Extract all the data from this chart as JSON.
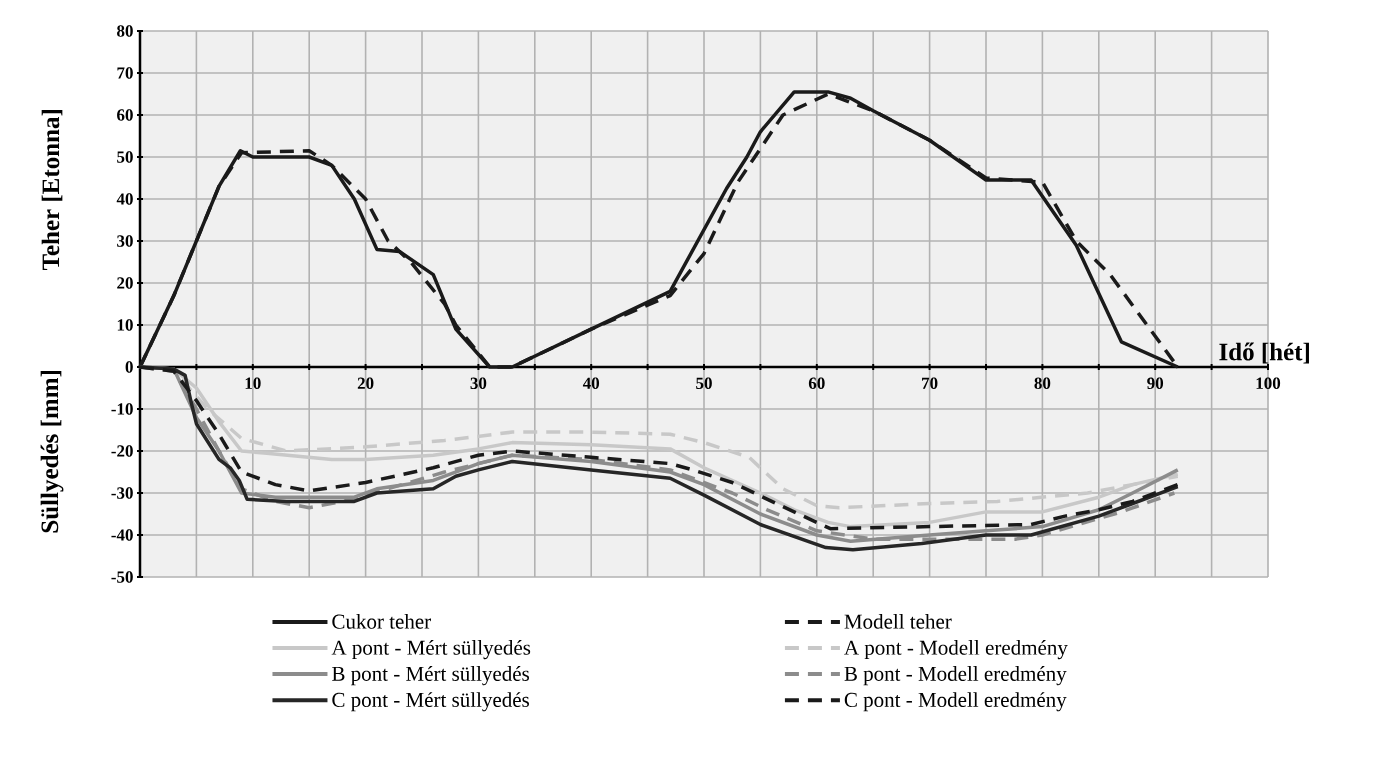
{
  "chart_data": {
    "type": "line",
    "xlabel": "Idő [hét]",
    "ylabel": "Teher [Etonna]",
    "annotations": [
      "Süllyedés [mm]"
    ],
    "xlim": [
      0,
      100
    ],
    "ylim": [
      -50,
      80
    ],
    "xticks": [
      {
        "value": 5,
        "label": null
      },
      10,
      {
        "value": 15,
        "label": null
      },
      20,
      {
        "value": 25,
        "label": null
      },
      30,
      {
        "value": 35,
        "label": null
      },
      40,
      {
        "value": 45,
        "label": null
      },
      50,
      {
        "value": 55,
        "label": null
      },
      60,
      {
        "value": 65,
        "label": null
      },
      70,
      {
        "value": 75,
        "label": null
      },
      80,
      {
        "value": 85,
        "label": null
      },
      90,
      {
        "value": 95,
        "label": null
      },
      100
    ],
    "yticks": [
      -50,
      -40,
      -30,
      -20,
      -10,
      0,
      10,
      20,
      30,
      40,
      50,
      60,
      70,
      80
    ],
    "grid": true,
    "legend": "bottom",
    "series": [
      {
        "name": "Cukor teher",
        "color": "#1a1a1a",
        "line_style": "solid",
        "x": [
          0,
          3,
          7,
          8.9,
          10,
          15,
          17,
          19,
          21,
          23,
          26,
          28,
          31,
          33,
          40,
          47,
          52,
          53.8,
          55,
          58,
          61,
          63,
          65,
          70,
          75,
          79,
          83,
          87,
          92
        ],
        "values": [
          0,
          17,
          43,
          51.5,
          50,
          50,
          48,
          40,
          28,
          27.5,
          22,
          9,
          0,
          0,
          9,
          18,
          42.5,
          50,
          56,
          65.5,
          65.5,
          64,
          61,
          54,
          44.5,
          44.5,
          29,
          6,
          0
        ]
      },
      {
        "name": "Modell teher",
        "color": "#1a1a1a",
        "line_style": "dashed",
        "x": [
          0,
          3,
          7,
          9,
          15,
          17,
          20,
          22,
          24,
          27,
          28,
          31,
          33,
          40,
          47,
          50,
          53,
          55,
          57,
          61,
          65,
          70,
          75,
          80,
          83,
          86,
          92
        ],
        "values": [
          0,
          17,
          43,
          51,
          51.5,
          48,
          40,
          30,
          25,
          15,
          10,
          0,
          0,
          9,
          17,
          27,
          44,
          52,
          60,
          65,
          61,
          54,
          45,
          44,
          30,
          22,
          0
        ]
      },
      {
        "name": "A pont - Mért süllyedés",
        "color": "#c8c8c8",
        "line_style": "solid",
        "x": [
          0,
          3,
          5,
          7,
          9,
          11,
          17,
          20,
          26,
          30,
          33,
          40,
          47,
          50,
          55,
          58,
          61,
          63,
          70,
          75,
          80,
          85,
          88,
          92
        ],
        "values": [
          0,
          -0.5,
          -5,
          -13,
          -20,
          -20.5,
          -22,
          -22,
          -21,
          -19.5,
          -18,
          -18.5,
          -19.5,
          -24,
          -30,
          -34,
          -37,
          -38,
          -37,
          -34.5,
          -34.5,
          -31,
          -28,
          -25.5
        ]
      },
      {
        "name": "A pont - Modell eredmény",
        "color": "#c8c8c8",
        "line_style": "dashed",
        "x": [
          0,
          3,
          6,
          9,
          13,
          20,
          27,
          33,
          40,
          47,
          50,
          54,
          57,
          60,
          62,
          70,
          76,
          84,
          88,
          92
        ],
        "values": [
          0,
          -1,
          -10,
          -17,
          -20,
          -19,
          -17.5,
          -15.5,
          -15.5,
          -16,
          -18,
          -21.5,
          -29,
          -33,
          -33.5,
          -32.5,
          -32,
          -30,
          -28,
          -26
        ]
      },
      {
        "name": "B pont - Mért süllyedés",
        "color": "#8c8c8c",
        "line_style": "solid",
        "x": [
          0,
          3,
          5,
          7,
          9,
          12,
          19,
          21,
          26,
          30,
          33,
          40,
          47,
          50,
          55,
          60,
          63,
          70,
          75,
          80,
          85,
          88,
          92
        ],
        "values": [
          0,
          -0.5,
          -12,
          -20,
          -30,
          -31,
          -31,
          -29,
          -27,
          -23,
          -21,
          -22.5,
          -25,
          -28,
          -35,
          -40,
          -41.5,
          -40,
          -39,
          -38,
          -34,
          -30,
          -24.5
        ]
      },
      {
        "name": "B pont - Modell eredmény",
        "color": "#8c8c8c",
        "line_style": "dashed",
        "x": [
          0,
          3,
          5,
          7,
          9,
          12,
          15,
          18,
          22,
          27,
          33,
          40,
          47,
          52.5,
          55.6,
          60,
          65,
          70,
          77.6,
          80,
          87,
          91.7
        ],
        "values": [
          0,
          -1,
          -10,
          -20,
          -29,
          -32,
          -33.5,
          -32,
          -29,
          -25,
          -21,
          -22,
          -24.5,
          -30,
          -34,
          -39,
          -41,
          -41,
          -41,
          -40,
          -34.5,
          -30
        ]
      },
      {
        "name": "C pont - Mért süllyedés",
        "color": "#262626",
        "line_style": "solid",
        "x": [
          0,
          3,
          4,
          4.5,
          5,
          7,
          8,
          8.8,
          9.5,
          13,
          19,
          21,
          26,
          28,
          30,
          33,
          40,
          47,
          50,
          55,
          60.8,
          63.2,
          69.3,
          75,
          79,
          85,
          88,
          92
        ],
        "values": [
          0,
          -0.5,
          -2,
          -8,
          -13.5,
          -22,
          -24,
          -27,
          -31.5,
          -32,
          -32,
          -30,
          -29,
          -26,
          -24.5,
          -22.5,
          -24.5,
          -26.5,
          -30.5,
          -37.5,
          -43,
          -43.5,
          -42,
          -40,
          -40,
          -35.5,
          -32.5,
          -28.5
        ]
      },
      {
        "name": "C pont - Modell eredmény",
        "color": "#1a1a1a",
        "line_style": "dashed",
        "x": [
          0,
          3,
          5,
          7,
          9,
          12,
          15,
          20,
          26,
          30,
          33,
          40,
          47,
          49,
          52.5,
          56.8,
          61.2,
          70,
          79,
          82,
          85,
          88,
          92
        ],
        "values": [
          0,
          -1,
          -8,
          -16,
          -25,
          -28,
          -29.5,
          -27.5,
          -24,
          -21,
          -20,
          -21.5,
          -23,
          -24.5,
          -27.5,
          -33,
          -38.5,
          -38,
          -37.5,
          -35.5,
          -34,
          -32,
          -28
        ]
      }
    ]
  }
}
